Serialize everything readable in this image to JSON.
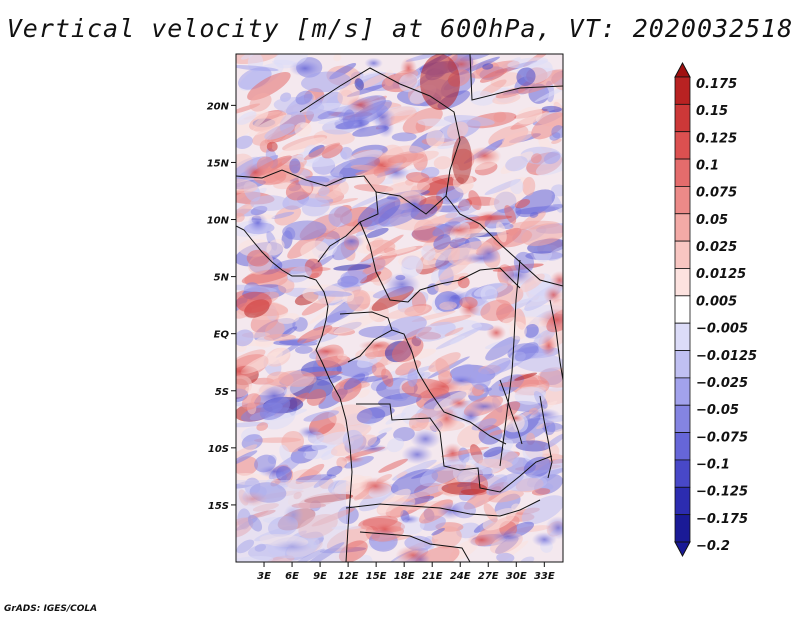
{
  "title": "Vertical velocity [m/s] at 600hPa, VT: 2020032518",
  "credit": "GrADS: IGES/COLA",
  "map": {
    "lon_range": [
      0,
      35
    ],
    "lat_range": [
      -20,
      24.5
    ],
    "lon_ticks": [
      {
        "value": 3,
        "label": "3E"
      },
      {
        "value": 6,
        "label": "6E"
      },
      {
        "value": 9,
        "label": "9E"
      },
      {
        "value": 12,
        "label": "12E"
      },
      {
        "value": 15,
        "label": "15E"
      },
      {
        "value": 18,
        "label": "18E"
      },
      {
        "value": 21,
        "label": "21E"
      },
      {
        "value": 24,
        "label": "24E"
      },
      {
        "value": 27,
        "label": "27E"
      },
      {
        "value": 30,
        "label": "30E"
      },
      {
        "value": 33,
        "label": "33E"
      }
    ],
    "lat_ticks": [
      {
        "value": 20,
        "label": "20N"
      },
      {
        "value": 15,
        "label": "15N"
      },
      {
        "value": 10,
        "label": "10N"
      },
      {
        "value": 5,
        "label": "5N"
      },
      {
        "value": 0,
        "label": "EQ"
      },
      {
        "value": -5,
        "label": "5S"
      },
      {
        "value": -10,
        "label": "10S"
      },
      {
        "value": -15,
        "label": "15S"
      }
    ]
  },
  "colorbar": {
    "levels": [
      {
        "label": "0.175",
        "color": "#a01010"
      },
      {
        "label": "0.15",
        "color": "#b82222"
      },
      {
        "label": "0.125",
        "color": "#cc3838"
      },
      {
        "label": "0.1",
        "color": "#dc5050"
      },
      {
        "label": "0.075",
        "color": "#e46c6c"
      },
      {
        "label": "0.05",
        "color": "#ec8a88"
      },
      {
        "label": "0.025",
        "color": "#f3aaa6"
      },
      {
        "label": "0.0125",
        "color": "#f8c6c2"
      },
      {
        "label": "0.005",
        "color": "#fce2df"
      },
      {
        "label": "−0.005",
        "color": "#ffffff"
      },
      {
        "label": "−0.0125",
        "color": "#dcdcf8"
      },
      {
        "label": "−0.025",
        "color": "#c0c0f2"
      },
      {
        "label": "−0.05",
        "color": "#a2a2ec"
      },
      {
        "label": "−0.075",
        "color": "#8484e2"
      },
      {
        "label": "−0.1",
        "color": "#6666d8"
      },
      {
        "label": "−0.125",
        "color": "#4848c8"
      },
      {
        "label": "−0.175",
        "color": "#2c2cb0"
      },
      {
        "label": "−0.2",
        "color": "#1a1a96"
      }
    ],
    "top_color": "#a01010",
    "bottom_color": "#1a1a96"
  }
}
